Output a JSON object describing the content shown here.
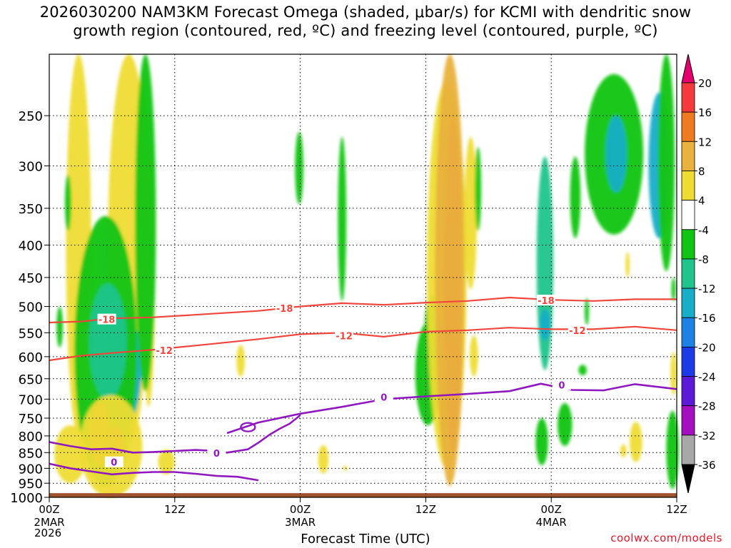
{
  "title_line1": "2026030200 NAM3KM Forecast Omega (shaded, μbar/s) for KCMI with dendritic snow",
  "title_line2": "growth region (contoured, red, ºC) and freezing level (contoured, purple, ºC)",
  "xlabel": "Forecast Time (UTC)",
  "credit": "coolwx.com/models",
  "year_label": "2026",
  "chart_data": {
    "type": "heatmap",
    "x_hours": [
      0,
      60
    ],
    "y_pressure_range": [
      1000,
      200
    ],
    "y_ticks": [
      250,
      300,
      350,
      400,
      450,
      500,
      550,
      600,
      650,
      700,
      750,
      800,
      850,
      900,
      950,
      1000
    ],
    "x_ticks": [
      {
        "h": 0,
        "l1": "00Z",
        "l2": "2MAR"
      },
      {
        "h": 12,
        "l1": "12Z",
        "l2": ""
      },
      {
        "h": 24,
        "l1": "00Z",
        "l2": "3MAR"
      },
      {
        "h": 36,
        "l1": "12Z",
        "l2": ""
      },
      {
        "h": 48,
        "l1": "00Z",
        "l2": "4MAR"
      },
      {
        "h": 60,
        "l1": "12Z",
        "l2": ""
      }
    ],
    "colorbar": {
      "labels": [
        "20",
        "16",
        "12",
        "8",
        "4",
        "-4",
        "-8",
        "-12",
        "-16",
        "-20",
        "-24",
        "-28",
        "-32",
        "-36"
      ],
      "colors": [
        "#e4006e",
        "#f43a3a",
        "#f07a1e",
        "#e8b23c",
        "#eedc34",
        "#ffffff",
        "#12c412",
        "#20c48c",
        "#18aec8",
        "#1c82e6",
        "#1c3ae6",
        "#5a1ad8",
        "#a410c0",
        "#a8a8a8",
        "#000000"
      ]
    },
    "omega_features": [
      {
        "h": 2.8,
        "p": 470,
        "rh": 1.2,
        "rp": 330,
        "v": 6
      },
      {
        "h": 7.6,
        "p": 460,
        "rh": 2.0,
        "rp": 360,
        "v": 6
      },
      {
        "h": 7.2,
        "p": 640,
        "rh": 1.6,
        "rp": 130,
        "v": -12
      },
      {
        "h": 5.4,
        "p": 660,
        "rh": 3.0,
        "rp": 300,
        "v": -7
      },
      {
        "h": 5.6,
        "p": 580,
        "rh": 1.8,
        "rp": 120,
        "v": -11
      },
      {
        "h": 9.5,
        "p": 500,
        "rh": 0.6,
        "rp": 220,
        "v": 6
      },
      {
        "h": 9.2,
        "p": 420,
        "rh": 1.0,
        "rp": 260,
        "v": -6
      },
      {
        "h": 4.8,
        "p": 800,
        "rh": 1.0,
        "rp": 90,
        "v": 12
      },
      {
        "h": 6.3,
        "p": 835,
        "rh": 1.0,
        "rp": 60,
        "v": 18
      },
      {
        "h": 5.9,
        "p": 850,
        "rh": 3.0,
        "rp": 160,
        "v": 5
      },
      {
        "h": 2.0,
        "p": 860,
        "rh": 1.5,
        "rp": 90,
        "v": 5
      },
      {
        "h": 11.2,
        "p": 880,
        "rh": 0.8,
        "rp": 40,
        "v": 5
      },
      {
        "h": 1.8,
        "p": 345,
        "rh": 0.3,
        "rp": 35,
        "v": -6
      },
      {
        "h": 1.0,
        "p": 540,
        "rh": 0.3,
        "rp": 40,
        "v": -6
      },
      {
        "h": 18.3,
        "p": 610,
        "rh": 0.4,
        "rp": 35,
        "v": 5
      },
      {
        "h": 26.2,
        "p": 872,
        "rh": 0.5,
        "rp": 45,
        "v": 5
      },
      {
        "h": 28.3,
        "p": 900,
        "rh": 0.2,
        "rp": 8,
        "v": 5
      },
      {
        "h": 23.9,
        "p": 305,
        "rh": 0.4,
        "rp": 40,
        "v": -6
      },
      {
        "h": 28.0,
        "p": 380,
        "rh": 0.4,
        "rp": 110,
        "v": -6
      },
      {
        "h": 36.2,
        "p": 650,
        "rh": 1.2,
        "rp": 120,
        "v": -7
      },
      {
        "h": 36.6,
        "p": 540,
        "rh": 0.7,
        "rp": 60,
        "v": -7
      },
      {
        "h": 38.0,
        "p": 560,
        "rh": 1.9,
        "rp": 340,
        "v": 6
      },
      {
        "h": 38.6,
        "p": 550,
        "rh": 0.8,
        "rp": 300,
        "v": 17
      },
      {
        "h": 38.3,
        "p": 580,
        "rh": 1.4,
        "rp": 380,
        "v": 10
      },
      {
        "h": 40.3,
        "p": 370,
        "rh": 0.6,
        "rp": 100,
        "v": 5
      },
      {
        "h": 40.6,
        "p": 600,
        "rh": 0.4,
        "rp": 45,
        "v": 5
      },
      {
        "h": 41.0,
        "p": 330,
        "rh": 0.3,
        "rp": 50,
        "v": -6
      },
      {
        "h": 47.4,
        "p": 460,
        "rh": 0.8,
        "rp": 170,
        "v": -9
      },
      {
        "h": 47.4,
        "p": 535,
        "rh": 0.5,
        "rp": 30,
        "v": -13
      },
      {
        "h": 47.1,
        "p": 820,
        "rh": 0.6,
        "rp": 70,
        "v": -6
      },
      {
        "h": 50.3,
        "p": 340,
        "rh": 0.5,
        "rp": 50,
        "v": -6
      },
      {
        "h": 51.4,
        "p": 510,
        "rh": 0.2,
        "rp": 25,
        "v": -6
      },
      {
        "h": 51.0,
        "p": 630,
        "rh": 0.4,
        "rp": 12,
        "v": -6
      },
      {
        "h": 54.0,
        "p": 300,
        "rh": 2.8,
        "rp": 85,
        "v": -7
      },
      {
        "h": 58.3,
        "p": 310,
        "rh": 1.0,
        "rp": 80,
        "v": -13
      },
      {
        "h": 54.2,
        "p": 290,
        "rh": 1.0,
        "rp": 40,
        "v": -13
      },
      {
        "h": 59.0,
        "p": 300,
        "rh": 0.8,
        "rp": 140,
        "v": -7
      },
      {
        "h": 59.7,
        "p": 640,
        "rh": 0.3,
        "rp": 50,
        "v": 5
      },
      {
        "h": 59.6,
        "p": 850,
        "rh": 0.6,
        "rp": 120,
        "v": -6
      },
      {
        "h": 56.1,
        "p": 820,
        "rh": 0.6,
        "rp": 60,
        "v": 5
      },
      {
        "h": 55.3,
        "p": 430,
        "rh": 0.2,
        "rp": 20,
        "v": 5
      },
      {
        "h": 49.3,
        "p": 770,
        "rh": 0.7,
        "rp": 60,
        "v": -6
      },
      {
        "h": 54.9,
        "p": 845,
        "rh": 0.3,
        "rp": 20,
        "v": 5
      },
      {
        "h": 59.7,
        "p": 470,
        "rh": 0.2,
        "rp": 20,
        "v": -6
      }
    ],
    "isotherm_minus18": {
      "label": "-18",
      "hours": [
        0,
        3,
        6,
        10,
        15,
        20,
        24,
        28,
        32,
        36,
        40,
        44,
        48,
        52,
        56,
        60
      ],
      "pressure": [
        530,
        528,
        522,
        520,
        514,
        508,
        500,
        494,
        497,
        493,
        490,
        484,
        488,
        490,
        487,
        487
      ]
    },
    "isotherm_minus12": {
      "label": "-12",
      "hours": [
        0,
        3,
        6,
        10,
        15,
        20,
        24,
        28,
        32,
        36,
        40,
        44,
        48,
        52,
        56,
        60
      ],
      "pressure": [
        608,
        598,
        592,
        585,
        574,
        563,
        553,
        550,
        558,
        548,
        545,
        540,
        543,
        543,
        538,
        545
      ]
    },
    "freezing_level": {
      "label": "0",
      "upper_hours": [
        17,
        20,
        24,
        28,
        32,
        36,
        40,
        44,
        47,
        50,
        53,
        56,
        60
      ],
      "upper_pressure": [
        792,
        762,
        738,
        720,
        700,
        693,
        687,
        680,
        662,
        677,
        678,
        663,
        675
      ],
      "lower_hours": [
        0,
        2,
        4,
        6,
        8,
        10,
        12,
        14,
        16,
        17,
        18,
        19,
        20,
        21,
        22,
        23,
        24
      ],
      "lower_pressure": [
        818,
        830,
        840,
        838,
        850,
        848,
        845,
        842,
        845,
        850,
        845,
        840,
        820,
        798,
        780,
        765,
        742
      ],
      "low_hours": [
        0,
        2,
        4,
        6,
        8,
        10,
        12,
        14,
        16,
        18,
        20
      ],
      "low_pressure": [
        885,
        900,
        910,
        920,
        915,
        912,
        912,
        918,
        925,
        928,
        940
      ]
    }
  }
}
